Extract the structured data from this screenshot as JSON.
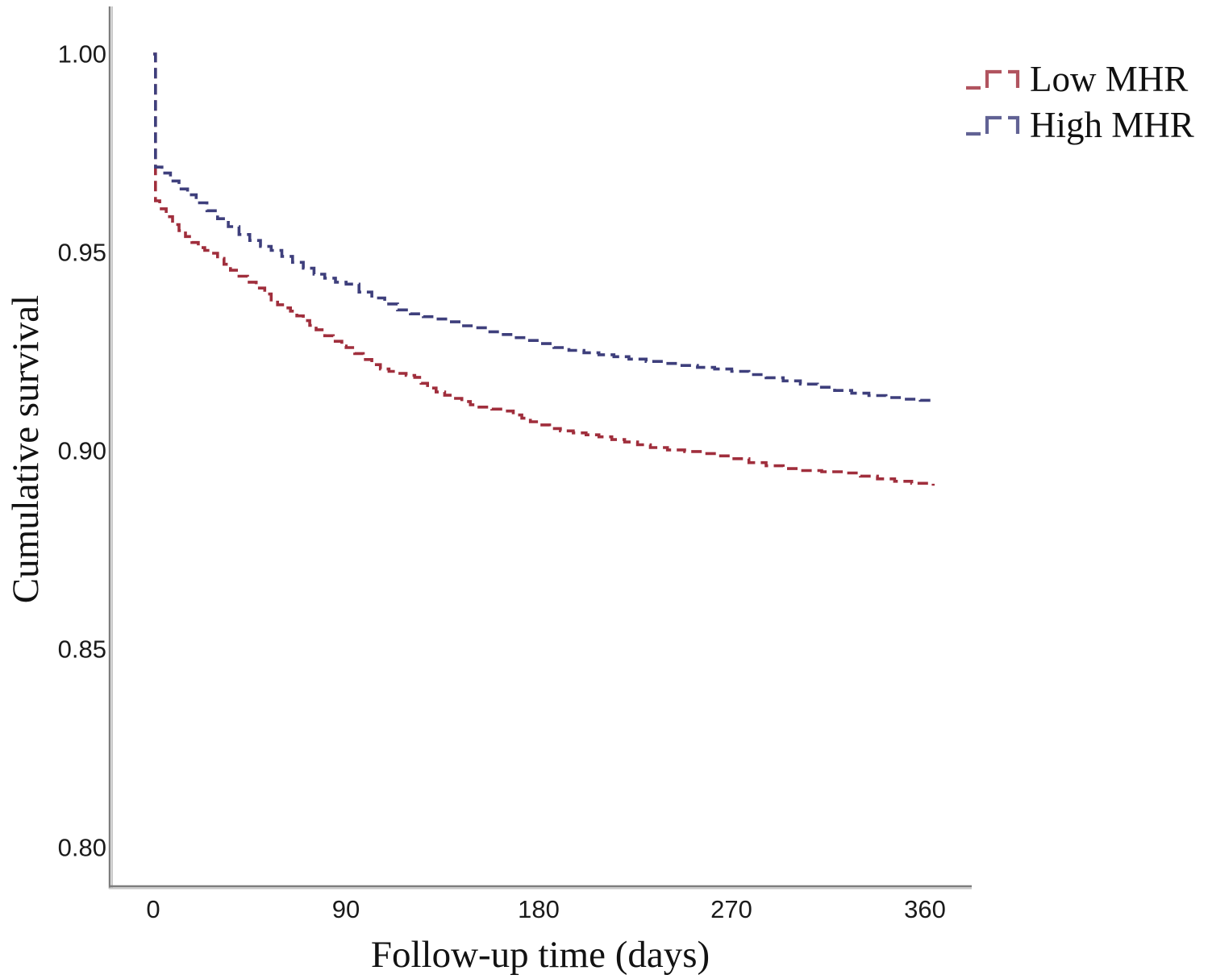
{
  "figure": {
    "background_color": "#ffffff",
    "axis_line_dark_color": "#7d7d7d",
    "axis_line_light_color": "#c9c9c9",
    "text_color": "#141414"
  },
  "chart_data": {
    "type": "line",
    "subtype": "kaplan-meier-step",
    "title": "",
    "xlabel": "Follow-up time (days)",
    "ylabel": "Cumulative survival",
    "grid": false,
    "xlim": [
      -20,
      382
    ],
    "ylim": [
      0.79,
      1.012
    ],
    "xticks": {
      "values": [
        0,
        90,
        180,
        270,
        360
      ],
      "labels": [
        "0",
        "90",
        "180",
        "270",
        "360"
      ]
    },
    "yticks": {
      "values": [
        1.0,
        0.95,
        0.9,
        0.85,
        0.8
      ],
      "labels": [
        "1.00",
        "0.95",
        "0.90",
        "0.85",
        "0.80"
      ]
    },
    "legend": {
      "position": "top-right",
      "entries": [
        {
          "label": "Low MHR",
          "color": "#a02e3c"
        },
        {
          "label": "High MHR",
          "color": "#3e3f7c"
        }
      ]
    },
    "series": [
      {
        "name": "Low MHR",
        "color": "#a02e3c",
        "line_style": "dashed",
        "points": [
          [
            0,
            1.0
          ],
          [
            1,
            0.963
          ],
          [
            3,
            0.961
          ],
          [
            6,
            0.959
          ],
          [
            9,
            0.957
          ],
          [
            12,
            0.9555
          ],
          [
            15,
            0.954
          ],
          [
            18,
            0.9525
          ],
          [
            21,
            0.9512
          ],
          [
            24,
            0.9505
          ],
          [
            27,
            0.9498
          ],
          [
            30,
            0.9485
          ],
          [
            33,
            0.947
          ],
          [
            36,
            0.9455
          ],
          [
            40,
            0.944
          ],
          [
            44,
            0.9425
          ],
          [
            48,
            0.941
          ],
          [
            52,
            0.9395
          ],
          [
            55,
            0.938
          ],
          [
            58,
            0.9368
          ],
          [
            61,
            0.936
          ],
          [
            64,
            0.9352
          ],
          [
            67,
            0.934
          ],
          [
            70,
            0.9328
          ],
          [
            73,
            0.9316
          ],
          [
            76,
            0.9305
          ],
          [
            80,
            0.929
          ],
          [
            84,
            0.9276
          ],
          [
            88,
            0.9264
          ],
          [
            90,
            0.926
          ],
          [
            94,
            0.9245
          ],
          [
            98,
            0.923
          ],
          [
            102,
            0.9217
          ],
          [
            106,
            0.9206
          ],
          [
            110,
            0.92
          ],
          [
            114,
            0.9195
          ],
          [
            118,
            0.919
          ],
          [
            122,
            0.9185
          ],
          [
            125,
            0.917
          ],
          [
            128,
            0.9158
          ],
          [
            132,
            0.9148
          ],
          [
            136,
            0.914
          ],
          [
            140,
            0.9132
          ],
          [
            144,
            0.9124
          ],
          [
            148,
            0.9116
          ],
          [
            152,
            0.911
          ],
          [
            158,
            0.9105
          ],
          [
            164,
            0.91
          ],
          [
            168,
            0.909
          ],
          [
            172,
            0.9082
          ],
          [
            176,
            0.9073
          ],
          [
            180,
            0.9065
          ],
          [
            185,
            0.9056
          ],
          [
            190,
            0.905
          ],
          [
            196,
            0.9045
          ],
          [
            202,
            0.904
          ],
          [
            208,
            0.9035
          ],
          [
            214,
            0.9028
          ],
          [
            220,
            0.9022
          ],
          [
            226,
            0.9015
          ],
          [
            232,
            0.9008
          ],
          [
            240,
            0.9002
          ],
          [
            248,
            0.8998
          ],
          [
            256,
            0.8993
          ],
          [
            264,
            0.8987
          ],
          [
            270,
            0.898
          ],
          [
            278,
            0.897
          ],
          [
            286,
            0.8962
          ],
          [
            294,
            0.8955
          ],
          [
            302,
            0.895
          ],
          [
            312,
            0.8947
          ],
          [
            322,
            0.8944
          ],
          [
            330,
            0.8936
          ],
          [
            338,
            0.8929
          ],
          [
            346,
            0.8923
          ],
          [
            354,
            0.8918
          ],
          [
            364,
            0.8912
          ]
        ]
      },
      {
        "name": "High MHR",
        "color": "#3e3f7c",
        "line_style": "dashed",
        "points": [
          [
            0,
            1.0
          ],
          [
            1,
            0.9715
          ],
          [
            4,
            0.97
          ],
          [
            8,
            0.968
          ],
          [
            12,
            0.966
          ],
          [
            16,
            0.9645
          ],
          [
            20,
            0.9625
          ],
          [
            25,
            0.9605
          ],
          [
            30,
            0.9585
          ],
          [
            35,
            0.9565
          ],
          [
            40,
            0.9545
          ],
          [
            45,
            0.953
          ],
          [
            50,
            0.9515
          ],
          [
            55,
            0.9505
          ],
          [
            60,
            0.949
          ],
          [
            65,
            0.9475
          ],
          [
            70,
            0.946
          ],
          [
            75,
            0.9445
          ],
          [
            80,
            0.9435
          ],
          [
            85,
            0.9425
          ],
          [
            90,
            0.942
          ],
          [
            96,
            0.94
          ],
          [
            102,
            0.9385
          ],
          [
            108,
            0.937
          ],
          [
            114,
            0.9355
          ],
          [
            120,
            0.9345
          ],
          [
            126,
            0.9338
          ],
          [
            132,
            0.9332
          ],
          [
            138,
            0.9325
          ],
          [
            144,
            0.9315
          ],
          [
            150,
            0.931
          ],
          [
            156,
            0.93
          ],
          [
            162,
            0.9293
          ],
          [
            168,
            0.9285
          ],
          [
            174,
            0.9278
          ],
          [
            180,
            0.927
          ],
          [
            187,
            0.926
          ],
          [
            194,
            0.9253
          ],
          [
            201,
            0.9247
          ],
          [
            208,
            0.9242
          ],
          [
            215,
            0.9237
          ],
          [
            222,
            0.9231
          ],
          [
            230,
            0.9225
          ],
          [
            238,
            0.922
          ],
          [
            246,
            0.9215
          ],
          [
            254,
            0.921
          ],
          [
            262,
            0.9206
          ],
          [
            270,
            0.92
          ],
          [
            278,
            0.9192
          ],
          [
            286,
            0.9184
          ],
          [
            294,
            0.9176
          ],
          [
            302,
            0.9168
          ],
          [
            310,
            0.916
          ],
          [
            318,
            0.9152
          ],
          [
            326,
            0.9145
          ],
          [
            334,
            0.9139
          ],
          [
            342,
            0.9134
          ],
          [
            350,
            0.913
          ],
          [
            358,
            0.9127
          ],
          [
            364,
            0.9125
          ]
        ]
      }
    ]
  }
}
